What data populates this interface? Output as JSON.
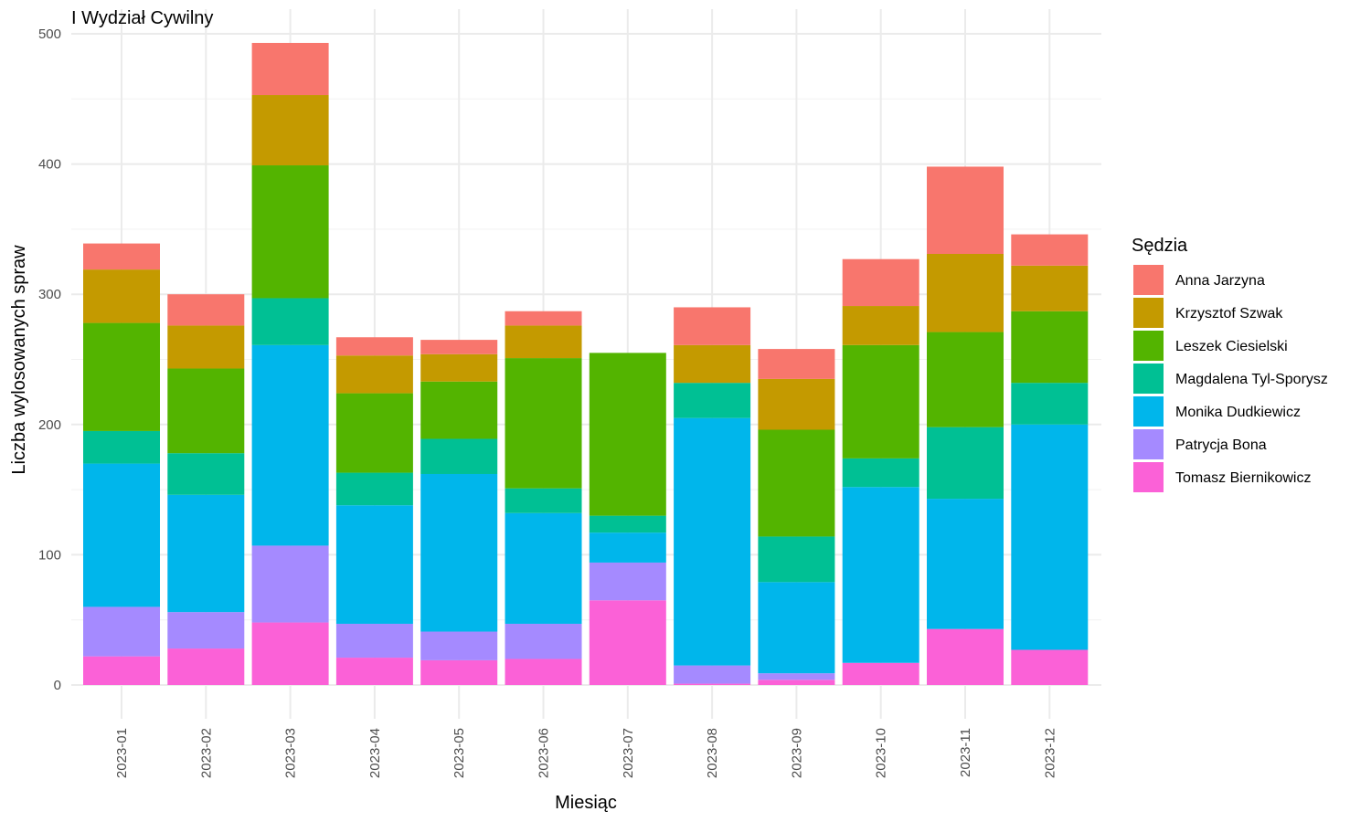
{
  "chart_data": {
    "type": "bar",
    "stacked": true,
    "title": "I Wydział Cywilny",
    "xlabel": "Miesiąc",
    "ylabel": "Liczba wylosowanych spraw",
    "ylim": [
      0,
      500
    ],
    "yticks": [
      0,
      100,
      200,
      300,
      400,
      500
    ],
    "grid": true,
    "legend_title": "Sędzia",
    "legend_position": "right",
    "categories": [
      "2023-01",
      "2023-02",
      "2023-03",
      "2023-04",
      "2023-05",
      "2023-06",
      "2023-07",
      "2023-08",
      "2023-09",
      "2023-10",
      "2023-11",
      "2023-12"
    ],
    "series": [
      {
        "name": "Tomasz Biernikowicz",
        "color": "#FB61D7",
        "values": [
          22,
          28,
          48,
          21,
          19,
          20,
          65,
          1,
          4,
          17,
          43,
          27
        ]
      },
      {
        "name": "Patrycja Bona",
        "color": "#A58AFF",
        "values": [
          38,
          28,
          59,
          26,
          22,
          27,
          29,
          14,
          5,
          0,
          0,
          0
        ]
      },
      {
        "name": "Monika Dudkiewicz",
        "color": "#00B6EB",
        "values": [
          110,
          90,
          154,
          91,
          121,
          85,
          23,
          190,
          70,
          135,
          100,
          173
        ]
      },
      {
        "name": "Magdalena Tyl-Sporysz",
        "color": "#00C094",
        "values": [
          25,
          32,
          36,
          25,
          27,
          19,
          13,
          27,
          35,
          22,
          55,
          32
        ]
      },
      {
        "name": "Leszek Ciesielski",
        "color": "#53B400",
        "values": [
          83,
          65,
          102,
          61,
          44,
          100,
          125,
          0,
          82,
          87,
          73,
          55
        ]
      },
      {
        "name": "Krzysztof Szwak",
        "color": "#C49A00",
        "values": [
          41,
          33,
          54,
          29,
          21,
          25,
          0,
          29,
          39,
          30,
          60,
          35
        ]
      },
      {
        "name": "Anna Jarzyna",
        "color": "#F8766D",
        "values": [
          20,
          24,
          40,
          14,
          11,
          11,
          0,
          29,
          23,
          36,
          67,
          24
        ]
      }
    ],
    "legend_order": [
      "Anna Jarzyna",
      "Krzysztof Szwak",
      "Leszek Ciesielski",
      "Magdalena Tyl-Sporysz",
      "Monika Dudkiewicz",
      "Patrycja Bona",
      "Tomasz Biernikowicz"
    ]
  }
}
